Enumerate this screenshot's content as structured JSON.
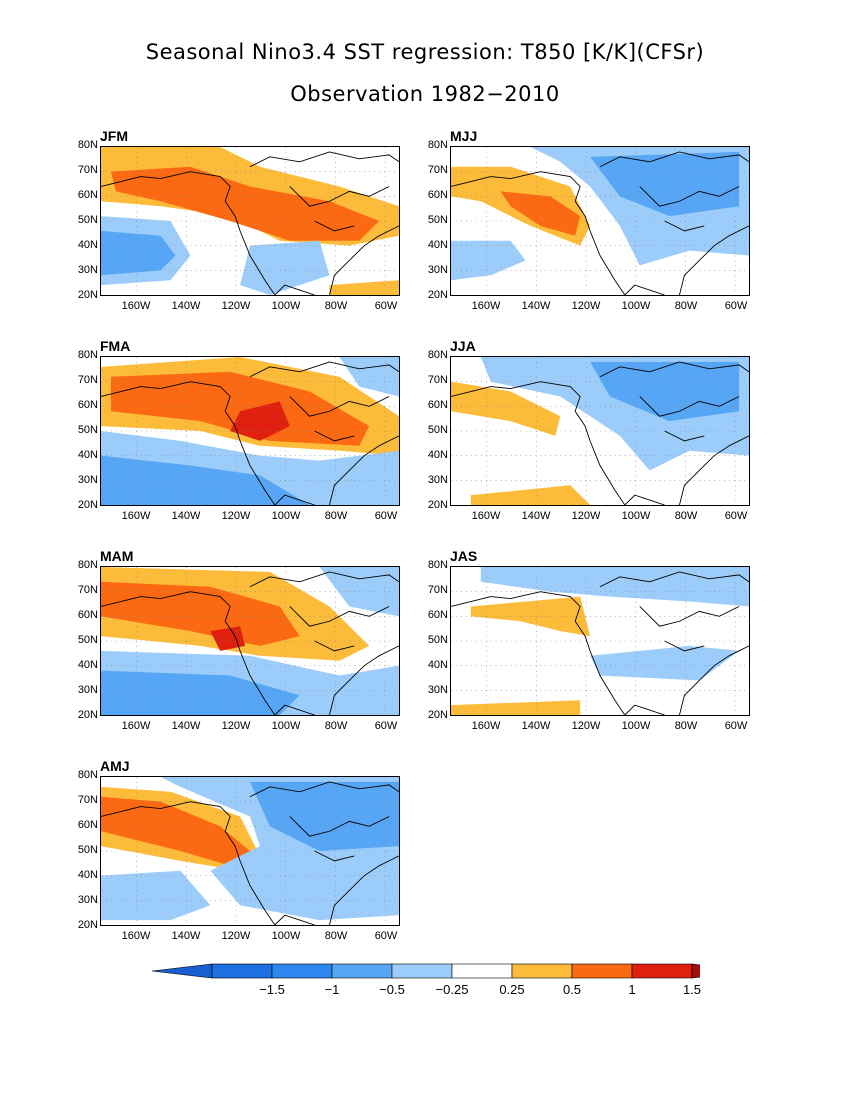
{
  "title": "Seasonal Nino3.4 SST regression: T850 [K/K](CFSr)",
  "subtitle": "Observation 1982−2010",
  "lat_labels": [
    "80N",
    "70N",
    "60N",
    "50N",
    "40N",
    "30N",
    "20N"
  ],
  "lon_labels": [
    "160W",
    "140W",
    "120W",
    "100W",
    "80W",
    "60W"
  ],
  "panels": [
    {
      "label": "JFM"
    },
    {
      "label": "MJJ"
    },
    {
      "label": "FMA"
    },
    {
      "label": "JJA"
    },
    {
      "label": "MAM"
    },
    {
      "label": "JAS"
    },
    {
      "label": "AMJ"
    }
  ],
  "colorbar": {
    "labels": [
      "−1.5",
      "−1",
      "−0.5",
      "−0.25",
      "0.25",
      "0.5",
      "1",
      "1.5"
    ],
    "colors": [
      "#1e6fe0",
      "#2e86f0",
      "#56a6f5",
      "#9ccdfa",
      "#ffffff",
      "#fdbb3a",
      "#fb6a12",
      "#e0200e",
      "#a41010"
    ],
    "left_arrow": "#1a5fd0",
    "right_arrow": "#a41010"
  },
  "map_colors": {
    "orange_light": "#fdbb3a",
    "orange": "#fb6a12",
    "red": "#e0200e",
    "blue_light": "#9ccdfa",
    "blue": "#56a6f5",
    "blue_dark": "#2e86f0"
  }
}
